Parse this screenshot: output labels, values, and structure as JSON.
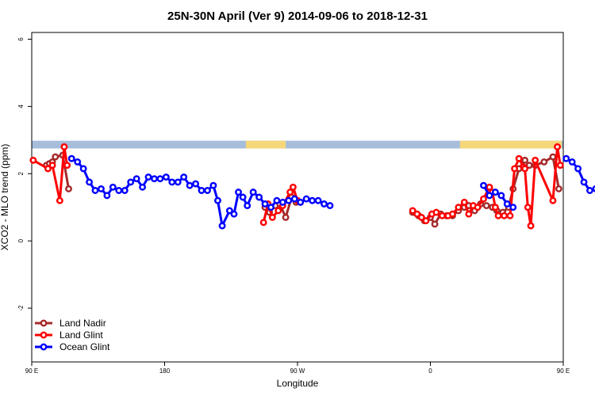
{
  "chart_data": {
    "type": "line",
    "title": "25N-30N April (Ver 9)   2014-09-06 to 2018-12-31",
    "xlabel": "Longitude",
    "ylabel": "XCO2 - MLO trend (ppm)",
    "xlim": [
      90,
      450
    ],
    "ylim": [
      -3.6,
      6.2
    ],
    "x_ticks": [
      {
        "value": 90,
        "label": "90 E"
      },
      {
        "value": 180,
        "label": "180"
      },
      {
        "value": 270,
        "label": "90 W"
      },
      {
        "value": 360,
        "label": "0"
      },
      {
        "value": 450,
        "label": "90 E"
      },
      {
        "value": 540,
        "label": "180"
      }
    ],
    "y_ticks": [
      {
        "value": -2,
        "label": "-2"
      },
      {
        "value": 0,
        "label": "0"
      },
      {
        "value": 2,
        "label": "2"
      },
      {
        "value": 4,
        "label": "4"
      },
      {
        "value": 6,
        "label": "6"
      }
    ],
    "land_ocean_band": {
      "y_range": [
        2.75,
        2.98
      ],
      "ocean_color": "#a6bddb",
      "land_color": "#f5d77a",
      "land_segments": [
        [
          235,
          262
        ],
        [
          380,
          449
        ],
        [
          458,
          550
        ]
      ]
    },
    "legend_position": "bottom-left",
    "series": [
      {
        "name": "Land Nadir",
        "color": "#a52a2a",
        "points": [
          [
            100,
            2.25
          ],
          [
            102,
            2.3
          ],
          [
            104,
            2.35
          ],
          [
            106,
            2.5
          ],
          [
            111,
            2.55
          ],
          [
            115,
            1.55
          ],
          [
            248,
            1.0
          ],
          [
            251,
            0.85
          ],
          [
            255,
            1.05
          ],
          [
            258,
            1.1
          ],
          [
            262,
            0.7
          ],
          [
            266,
            1.3
          ],
          [
            269,
            1.15
          ],
          [
            348,
            0.85
          ],
          [
            352,
            0.75
          ],
          [
            356,
            0.6
          ],
          [
            360,
            0.7
          ],
          [
            363,
            0.5
          ],
          [
            367,
            0.8
          ],
          [
            371,
            0.75
          ],
          [
            375,
            0.75
          ],
          [
            379,
            0.9
          ],
          [
            383,
            1.0
          ],
          [
            386,
            1.05
          ],
          [
            390,
            0.9
          ],
          [
            394,
            1.1
          ],
          [
            398,
            1.05
          ],
          [
            402,
            1.0
          ],
          [
            405,
            0.9
          ],
          [
            409,
            0.85
          ],
          [
            413,
            1.0
          ],
          [
            416,
            1.55
          ],
          [
            420,
            2.15
          ],
          [
            424,
            2.4
          ],
          [
            427,
            2.25
          ],
          [
            431,
            2.25
          ],
          [
            437,
            2.35
          ],
          [
            443,
            2.5
          ],
          [
            447,
            1.55
          ]
        ]
      },
      {
        "name": "Land Glint",
        "color": "#ff0000",
        "points": [
          [
            91,
            2.4
          ],
          [
            101,
            2.15
          ],
          [
            104,
            2.25
          ],
          [
            109,
            1.2
          ],
          [
            112,
            2.8
          ],
          [
            114,
            2.25
          ],
          [
            247,
            0.55
          ],
          [
            250,
            1.1
          ],
          [
            253,
            0.7
          ],
          [
            257,
            0.9
          ],
          [
            260,
            1.05
          ],
          [
            265,
            1.45
          ],
          [
            267,
            1.6
          ],
          [
            270,
            1.2
          ],
          [
            272,
            1.15
          ],
          [
            348,
            0.9
          ],
          [
            351,
            0.8
          ],
          [
            354,
            0.7
          ],
          [
            357,
            0.6
          ],
          [
            361,
            0.8
          ],
          [
            364,
            0.85
          ],
          [
            368,
            0.75
          ],
          [
            372,
            0.75
          ],
          [
            375,
            0.8
          ],
          [
            379,
            1.0
          ],
          [
            383,
            1.15
          ],
          [
            386,
            0.8
          ],
          [
            389,
            1.05
          ],
          [
            392,
            1.0
          ],
          [
            396,
            1.25
          ],
          [
            400,
            1.6
          ],
          [
            402,
            1.45
          ],
          [
            404,
            1.0
          ],
          [
            406,
            0.75
          ],
          [
            410,
            0.75
          ],
          [
            414,
            0.75
          ],
          [
            417,
            2.15
          ],
          [
            420,
            2.45
          ],
          [
            423,
            2.2
          ],
          [
            424,
            2.15
          ],
          [
            426,
            1.0
          ],
          [
            428,
            0.45
          ],
          [
            431,
            2.4
          ],
          [
            443,
            1.2
          ],
          [
            446,
            2.8
          ],
          [
            448,
            2.25
          ]
        ]
      },
      {
        "name": "Ocean Glint",
        "color": "#0000ff",
        "points": [
          [
            117,
            2.45
          ],
          [
            121,
            2.35
          ],
          [
            125,
            2.15
          ],
          [
            129,
            1.75
          ],
          [
            133,
            1.5
          ],
          [
            137,
            1.55
          ],
          [
            141,
            1.35
          ],
          [
            145,
            1.6
          ],
          [
            149,
            1.5
          ],
          [
            153,
            1.5
          ],
          [
            157,
            1.75
          ],
          [
            161,
            1.85
          ],
          [
            165,
            1.6
          ],
          [
            169,
            1.9
          ],
          [
            173,
            1.85
          ],
          [
            177,
            1.85
          ],
          [
            181,
            1.9
          ],
          [
            185,
            1.75
          ],
          [
            189,
            1.75
          ],
          [
            193,
            1.9
          ],
          [
            197,
            1.65
          ],
          [
            201,
            1.7
          ],
          [
            205,
            1.5
          ],
          [
            209,
            1.5
          ],
          [
            213,
            1.65
          ],
          [
            216,
            1.2
          ],
          [
            219,
            0.45
          ],
          [
            224,
            0.9
          ],
          [
            227,
            0.8
          ],
          [
            230,
            1.45
          ],
          [
            233,
            1.3
          ],
          [
            236,
            1.05
          ],
          [
            240,
            1.45
          ],
          [
            244,
            1.3
          ],
          [
            248,
            1.1
          ],
          [
            252,
            1.0
          ],
          [
            256,
            1.2
          ],
          [
            260,
            1.15
          ],
          [
            264,
            1.2
          ],
          [
            268,
            1.25
          ],
          [
            272,
            1.15
          ],
          [
            276,
            1.25
          ],
          [
            280,
            1.2
          ],
          [
            284,
            1.2
          ],
          [
            288,
            1.1
          ],
          [
            292,
            1.05
          ],
          [
            396,
            1.65
          ],
          [
            400,
            1.35
          ],
          [
            404,
            1.45
          ],
          [
            408,
            1.35
          ],
          [
            412,
            1.1
          ],
          [
            416,
            1.0
          ],
          [
            452,
            2.45
          ],
          [
            456,
            2.35
          ],
          [
            460,
            2.15
          ],
          [
            464,
            1.75
          ],
          [
            468,
            1.5
          ],
          [
            472,
            1.55
          ],
          [
            476,
            1.35
          ],
          [
            480,
            1.6
          ],
          [
            484,
            1.5
          ],
          [
            488,
            1.5
          ],
          [
            492,
            1.75
          ],
          [
            496,
            1.85
          ]
        ]
      }
    ]
  }
}
